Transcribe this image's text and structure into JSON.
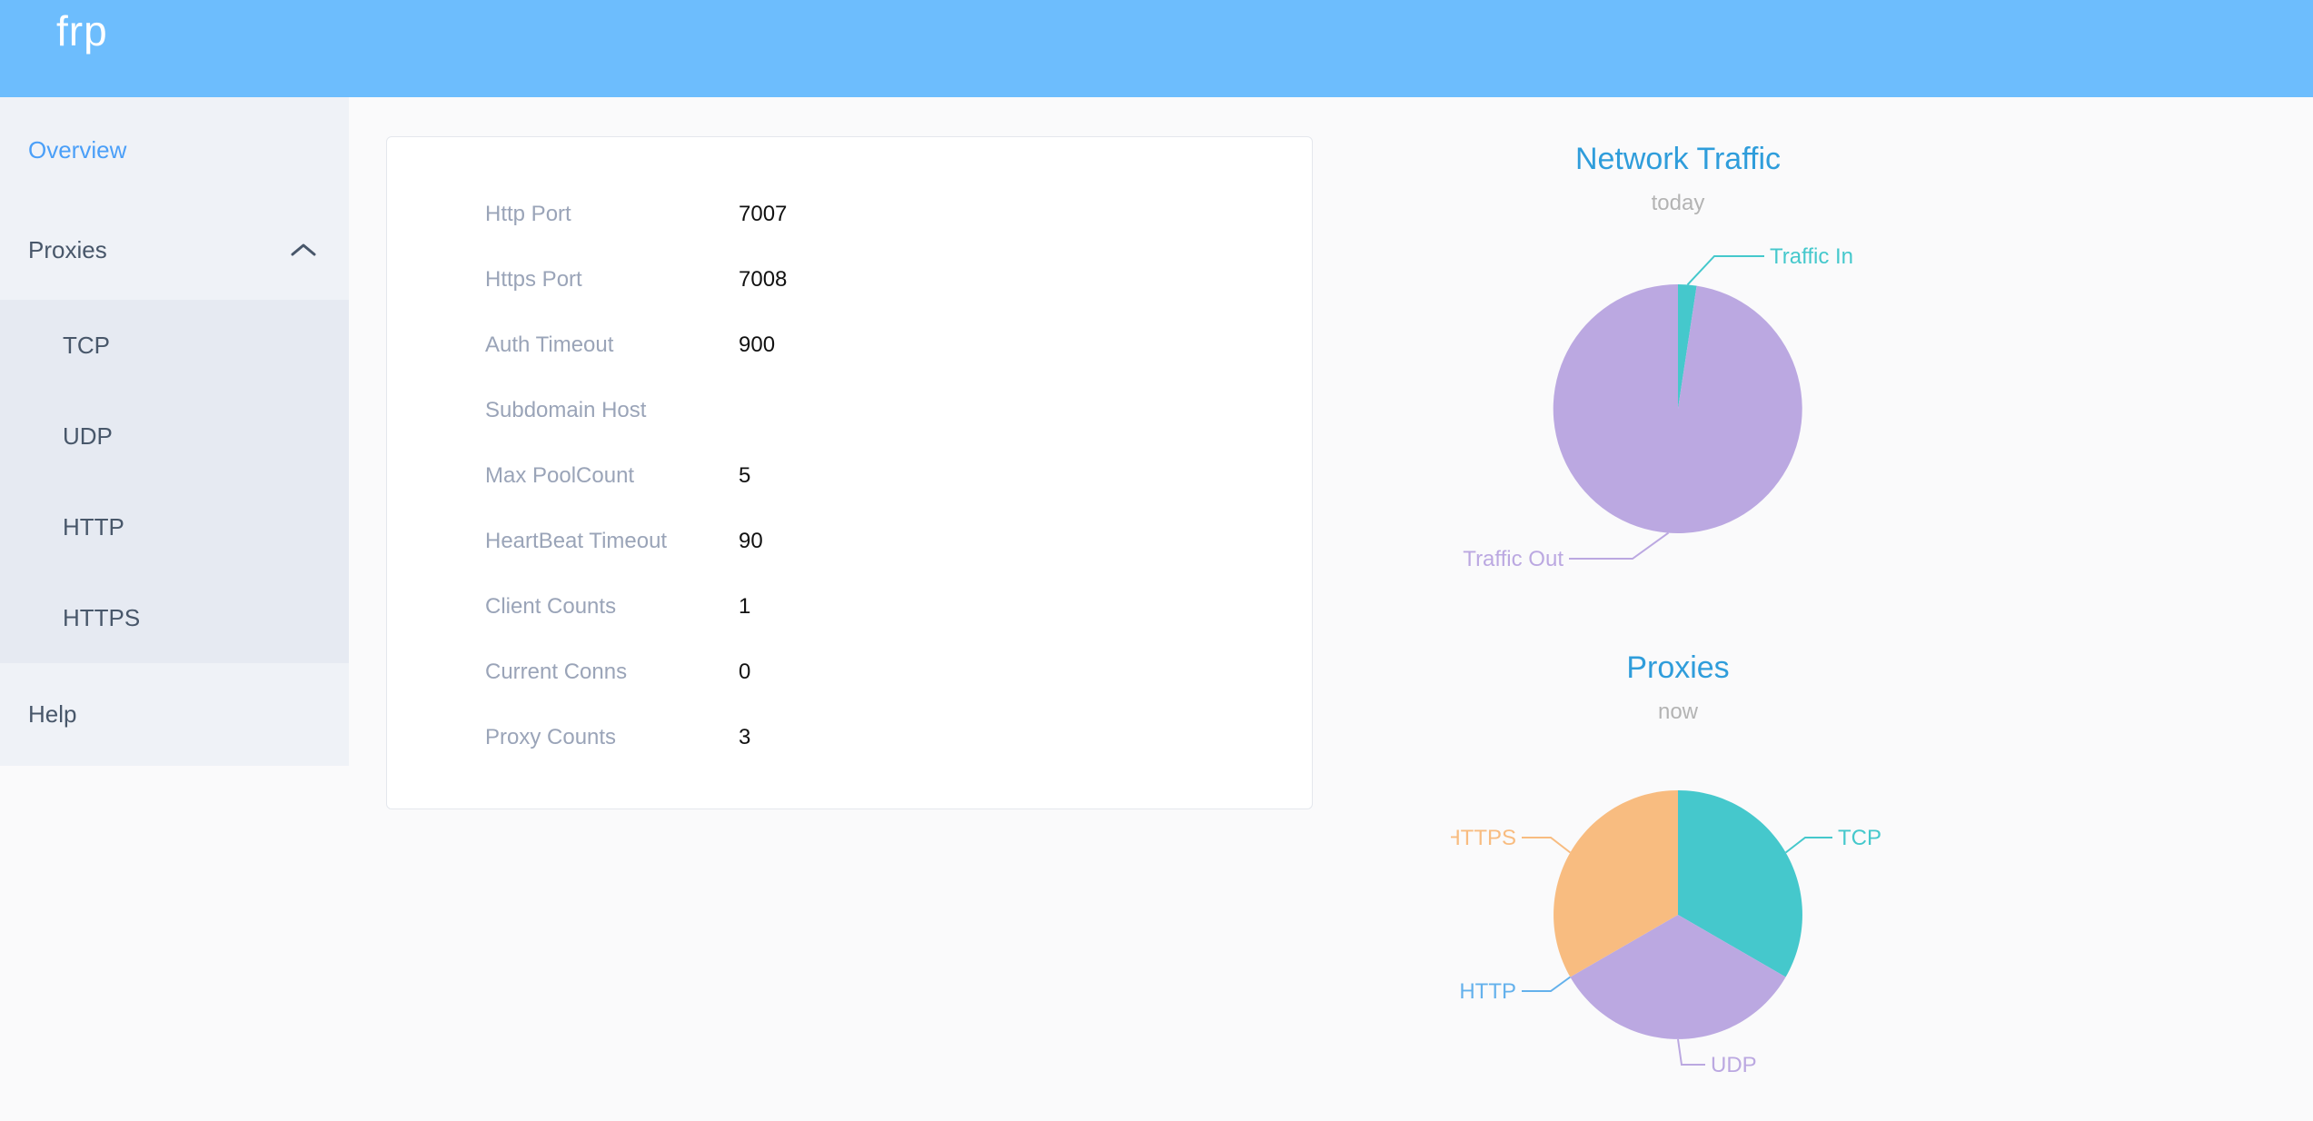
{
  "header": {
    "logo": "frp",
    "background": "#6dbdfd"
  },
  "sidebar": {
    "active_color": "#4a9ff8",
    "items": [
      {
        "label": "Overview",
        "active": true
      },
      {
        "label": "Proxies",
        "expanded": true,
        "children": [
          {
            "label": "TCP"
          },
          {
            "label": "UDP"
          },
          {
            "label": "HTTP"
          },
          {
            "label": "HTTPS"
          }
        ]
      },
      {
        "label": "Help"
      }
    ]
  },
  "server_info": {
    "rows": [
      {
        "label": "Http Port",
        "value": "7007"
      },
      {
        "label": "Https Port",
        "value": "7008"
      },
      {
        "label": "Auth Timeout",
        "value": "900"
      },
      {
        "label": "Subdomain Host",
        "value": ""
      },
      {
        "label": "Max PoolCount",
        "value": "5"
      },
      {
        "label": "HeartBeat Timeout",
        "value": "90"
      },
      {
        "label": "Client Counts",
        "value": "1"
      },
      {
        "label": "Current Conns",
        "value": "0"
      },
      {
        "label": "Proxy Counts",
        "value": "3"
      }
    ]
  },
  "charts_ui": {
    "title_color": "#2f9ddb",
    "subtitle_color": "#b3b3b3"
  },
  "chart_data": [
    {
      "type": "pie",
      "title": "Network Traffic",
      "subtitle": "today",
      "labels": [
        "Traffic In",
        "Traffic Out"
      ],
      "values": [
        2.4,
        97.6
      ],
      "unit": "percent (estimated from slice angles)",
      "colors": [
        "#45c8cc",
        "#bba8e1"
      ],
      "legend_position": "callout-labels",
      "grid": false
    },
    {
      "type": "pie",
      "title": "Proxies",
      "subtitle": "now",
      "labels": [
        "TCP",
        "UDP",
        "HTTP",
        "HTTPS"
      ],
      "values": [
        1,
        1,
        0,
        1
      ],
      "unit": "proxies",
      "colors": [
        "#45c8cc",
        "#bba8e1",
        "#64b1ec",
        "#f8bc80"
      ],
      "legend_position": "callout-labels",
      "grid": false
    }
  ]
}
